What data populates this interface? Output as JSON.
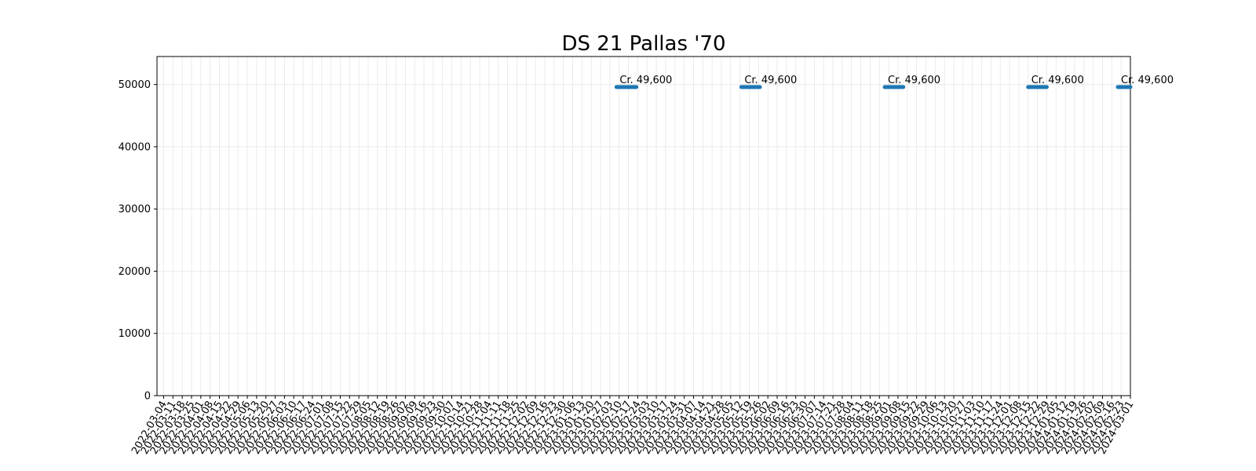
{
  "chart_data": {
    "type": "line",
    "title": "DS 21 Pallas '70",
    "xlabel": "",
    "ylabel": "",
    "ylim": [
      0,
      54500
    ],
    "xlim": [
      "2022-02-27",
      "2024-03-01"
    ],
    "grid": true,
    "x_ticks": [
      "2022-03-04",
      "2022-03-11",
      "2022-03-18",
      "2022-03-25",
      "2022-04-01",
      "2022-04-08",
      "2022-04-15",
      "2022-04-22",
      "2022-04-29",
      "2022-05-06",
      "2022-05-13",
      "2022-05-20",
      "2022-05-27",
      "2022-06-03",
      "2022-06-10",
      "2022-06-17",
      "2022-06-24",
      "2022-07-01",
      "2022-07-08",
      "2022-07-15",
      "2022-07-22",
      "2022-07-29",
      "2022-08-05",
      "2022-08-12",
      "2022-08-19",
      "2022-08-26",
      "2022-09-02",
      "2022-09-09",
      "2022-09-16",
      "2022-09-23",
      "2022-09-30",
      "2022-10-07",
      "2022-10-14",
      "2022-10-21",
      "2022-10-28",
      "2022-11-04",
      "2022-11-11",
      "2022-11-18",
      "2022-11-25",
      "2022-12-02",
      "2022-12-09",
      "2022-12-16",
      "2022-12-23",
      "2022-12-30",
      "2023-01-06",
      "2023-01-13",
      "2023-01-20",
      "2023-01-27",
      "2023-02-03",
      "2023-02-10",
      "2023-02-17",
      "2023-02-24",
      "2023-03-03",
      "2023-03-10",
      "2023-03-17",
      "2023-03-24",
      "2023-03-31",
      "2023-04-07",
      "2023-04-14",
      "2023-04-21",
      "2023-04-28",
      "2023-05-05",
      "2023-05-12",
      "2023-05-19",
      "2023-05-26",
      "2023-06-02",
      "2023-06-09",
      "2023-06-16",
      "2023-06-23",
      "2023-06-30",
      "2023-07-07",
      "2023-07-14",
      "2023-07-21",
      "2023-07-28",
      "2023-08-04",
      "2023-08-11",
      "2023-08-18",
      "2023-08-25",
      "2023-09-01",
      "2023-09-08",
      "2023-09-15",
      "2023-09-22",
      "2023-09-29",
      "2023-10-06",
      "2023-10-13",
      "2023-10-20",
      "2023-10-27",
      "2023-11-03",
      "2023-11-10",
      "2023-11-17",
      "2023-11-24",
      "2023-12-01",
      "2023-12-08",
      "2023-12-15",
      "2023-12-22",
      "2023-12-29",
      "2024-01-05",
      "2024-01-12",
      "2024-01-19",
      "2024-01-26",
      "2024-02-02",
      "2024-02-09",
      "2024-02-16",
      "2024-02-23",
      "2024-03-01"
    ],
    "y_ticks": [
      0,
      10000,
      20000,
      30000,
      40000,
      50000
    ],
    "series": [
      {
        "color": "#1f77b4",
        "segments": [
          {
            "x": [
              "2023-02-08",
              "2023-02-23"
            ],
            "y": [
              49600,
              49600
            ],
            "label": "Cr. 49,600"
          },
          {
            "x": [
              "2023-05-13",
              "2023-05-27"
            ],
            "y": [
              49600,
              49600
            ],
            "label": "Cr. 49,600"
          },
          {
            "x": [
              "2023-08-29",
              "2023-09-12"
            ],
            "y": [
              49600,
              49600
            ],
            "label": "Cr. 49,600"
          },
          {
            "x": [
              "2023-12-15",
              "2023-12-29"
            ],
            "y": [
              49600,
              49600
            ],
            "label": "Cr. 49,600"
          },
          {
            "x": [
              "2024-03-28",
              "2024-04-07"
            ],
            "y": [
              49600,
              49600
            ],
            "label": "Cr. 49,600"
          }
        ]
      }
    ]
  }
}
